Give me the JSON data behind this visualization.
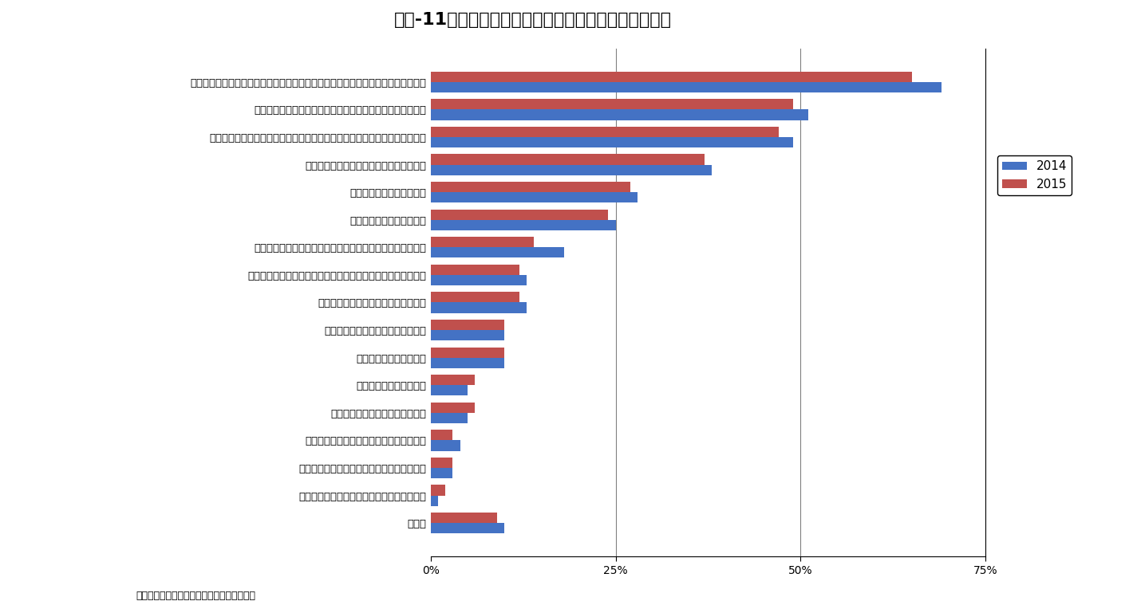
{
  "title": "図表-11　日本で事業展開する上での魅力（回答３つ）",
  "categories": [
    "所得水準が高く、製品・サービスの顧客ボリュームが大きい（市場規模が大きい）",
    "インフラ（交通、エネルギー、情報通信等）が充実している",
    "付加価値や流行に敏感で、新製品・新サービスに対する競争力が検証できる",
    "グローバル企業や関連企業が集積している",
    "生活環境が整備されている",
    "有能な人材の確保ができる",
    "アジア市場のゲートウェイ、地域統括拠点として最適である",
    "本社や管理対象国へのアクセス等、地理的要因に恵まれている",
    "資金調達など金融環境が充実している",
    "知的財産等の法整備が充実している",
    "研究開発環境の質が高い",
    "事業規制の開放度が高い",
    "ビジネス支援機関が充実している",
    "震災を受け、需要増・販売増が見込まれる",
    "優遇措置、インセンティブ等が充実している",
    "ビジネスコスト（人件費、不動産等）が低い",
    "その他"
  ],
  "values_2014": [
    69,
    51,
    49,
    38,
    28,
    25,
    18,
    13,
    13,
    10,
    10,
    5,
    5,
    4,
    3,
    1,
    10
  ],
  "values_2015": [
    65,
    49,
    47,
    37,
    27,
    24,
    14,
    12,
    12,
    10,
    10,
    6,
    6,
    3,
    3,
    2,
    9
  ],
  "color_2014": "#4472C4",
  "color_2015": "#C0504D",
  "xlim": [
    0,
    75
  ],
  "xticks": [
    0,
    25,
    50,
    75
  ],
  "xticklabels": [
    "0%",
    "25%",
    "50%",
    "75%"
  ],
  "legend_2014": "2014",
  "legend_2015": "2015",
  "source": "（出所）経済産業省「外資系企業動向調査」",
  "background_color": "#FFFFFF",
  "grid_color": "#808080",
  "title_fontsize": 16,
  "label_fontsize": 9.5,
  "tick_fontsize": 10
}
